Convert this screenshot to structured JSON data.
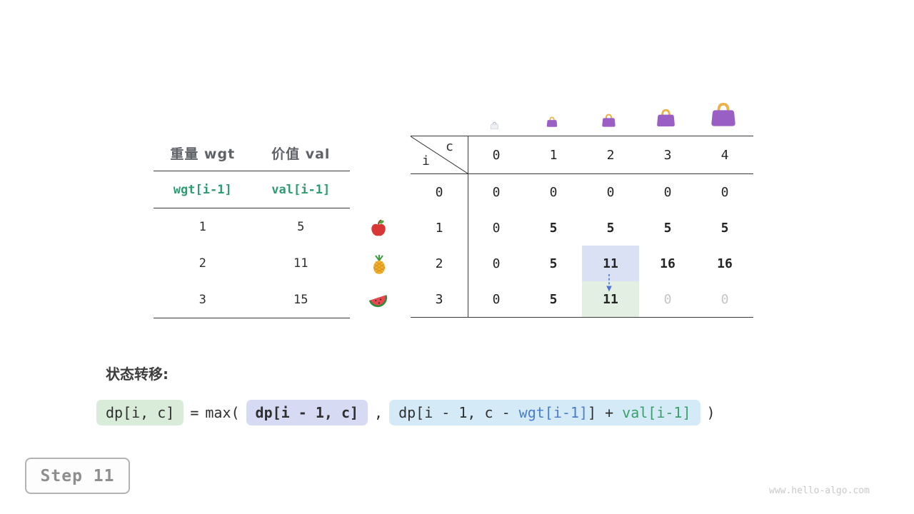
{
  "page": {
    "step_label": "Step 11",
    "watermark": "www.hello-algo.com"
  },
  "item_table": {
    "col_headers": [
      "重量 wgt",
      "价值 val"
    ],
    "var_row": [
      "wgt[i-1]",
      "val[i-1]"
    ],
    "rows": [
      [
        "1",
        "5"
      ],
      [
        "2",
        "11"
      ],
      [
        "3",
        "15"
      ]
    ]
  },
  "icons": {
    "fruits": [
      "apple-icon",
      "pineapple-icon",
      "watermelon-icon"
    ],
    "bags": [
      "empty-bag-icon",
      "bag-capacity-1-icon",
      "bag-capacity-2-icon",
      "bag-capacity-3-icon",
      "bag-capacity-4-icon"
    ],
    "arrow": "down-arrow-icon"
  },
  "dp_table": {
    "corner_col_label": "c",
    "corner_row_label": "i",
    "col_headers": [
      "0",
      "1",
      "2",
      "3",
      "4"
    ],
    "row_headers": [
      "0",
      "1",
      "2",
      "3"
    ],
    "rows": [
      [
        {
          "v": "0",
          "s": "n"
        },
        {
          "v": "0",
          "s": "n"
        },
        {
          "v": "0",
          "s": "n"
        },
        {
          "v": "0",
          "s": "n"
        },
        {
          "v": "0",
          "s": "n"
        }
      ],
      [
        {
          "v": "0",
          "s": "n"
        },
        {
          "v": "5",
          "s": "b"
        },
        {
          "v": "5",
          "s": "b"
        },
        {
          "v": "5",
          "s": "b"
        },
        {
          "v": "5",
          "s": "b"
        }
      ],
      [
        {
          "v": "0",
          "s": "n"
        },
        {
          "v": "5",
          "s": "b"
        },
        {
          "v": "11",
          "s": "hb"
        },
        {
          "v": "16",
          "s": "b"
        },
        {
          "v": "16",
          "s": "b"
        }
      ],
      [
        {
          "v": "0",
          "s": "n"
        },
        {
          "v": "5",
          "s": "b"
        },
        {
          "v": "11",
          "s": "hg"
        },
        {
          "v": "0",
          "s": "d"
        },
        {
          "v": "0",
          "s": "d"
        }
      ]
    ],
    "highlight_from_cell": {
      "row": 2,
      "col": 2
    },
    "highlight_to_cell": {
      "row": 3,
      "col": 2
    }
  },
  "formula": {
    "label": "状态转移:",
    "dp_target": "dp[i, c]",
    "equals": "=",
    "max_open": "max(",
    "keep_term": "dp[i - 1, c]",
    "comma": ",",
    "pick_prefix": "dp[i - 1, c - ",
    "wgt_term": "wgt[i-1]",
    "pick_mid": "] + ",
    "val_term": "val[i-1]",
    "close": ")"
  },
  "colors": {
    "var_green": "#2f9b72",
    "formula_wgt_blue": "#4a7dd0",
    "formula_val_green": "#3aa06b",
    "chip_green_bg": "#d9ecd9",
    "chip_purple_bg": "#d6daf3",
    "chip_blue_bg": "#d4eaf6",
    "cell_blue_bg": "#dbe1f5",
    "cell_green_bg": "#e2efe2",
    "bag_purple": "#9a5fc4",
    "bag_handle": "#ecb24a",
    "arrow_blue": "#4f74d2"
  }
}
